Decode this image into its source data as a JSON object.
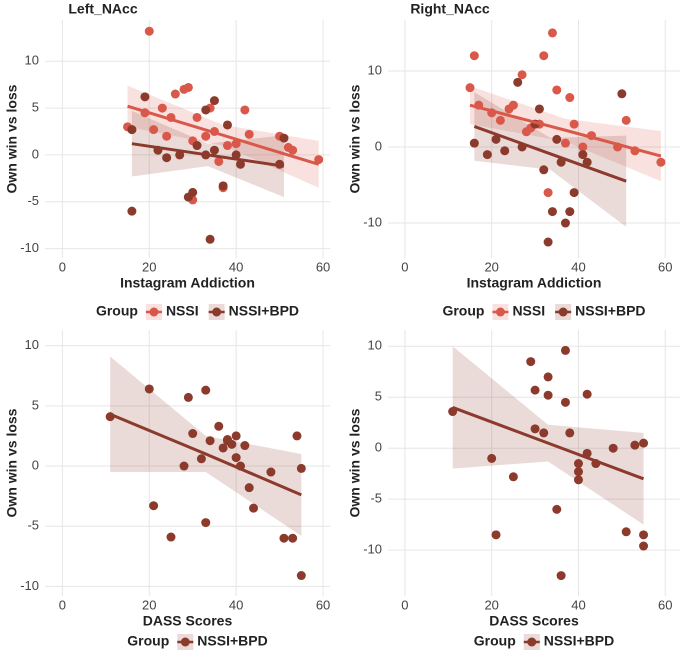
{
  "chart_data": [
    {
      "type": "scatter",
      "title": "Left_NAcc",
      "x_label": "Instagram Addiction",
      "y_label": "Own win vs loss",
      "legend_title": "Group",
      "legend": "bottom",
      "grid": true,
      "xlim": [
        -4,
        61.6
      ],
      "ylim": [
        -11,
        14.4
      ],
      "xticks": [
        0,
        20,
        40,
        60
      ],
      "yticks": [
        -10,
        -5,
        0,
        5,
        10
      ],
      "series": [
        {
          "name": "NSSI",
          "color": "#d9584a",
          "x": [
            15,
            16,
            19,
            20,
            21,
            23,
            24,
            25,
            26,
            28,
            29,
            30,
            31,
            33,
            34,
            35,
            36,
            38,
            40,
            42,
            43,
            50,
            52,
            53,
            59,
            30,
            37
          ],
          "values": [
            3,
            2.7,
            4.5,
            13.2,
            2.7,
            5,
            2,
            4,
            6.5,
            7,
            7.2,
            1.5,
            4,
            2,
            5,
            2.5,
            -0.7,
            1,
            1.2,
            4.8,
            2.2,
            2,
            0.8,
            0.5,
            -0.5,
            -4.8,
            -3.5
          ],
          "fit_x": [
            15,
            37,
            59
          ],
          "fit": [
            5.2,
            2.1,
            -1.0
          ],
          "fit_lower": [
            3.0,
            1.0,
            -3.5
          ],
          "fit_upper": [
            7.4,
            3.2,
            1.5
          ]
        },
        {
          "name": "NSSI+BPD",
          "color": "#8b3a2c",
          "x": [
            16,
            16,
            19,
            22,
            24,
            27,
            29,
            30,
            31,
            33,
            34,
            35,
            37,
            38,
            40,
            41,
            50,
            51,
            33,
            35
          ],
          "values": [
            -6,
            2.7,
            6.2,
            0.5,
            -0.3,
            0,
            -4.5,
            -4,
            1,
            0,
            -9,
            5.8,
            -3.3,
            3.2,
            0,
            -1,
            -1,
            1.8,
            4.8,
            0.5
          ],
          "fit_x": [
            16,
            33.5,
            51
          ],
          "fit": [
            1.2,
            0,
            -1.2
          ],
          "fit_lower": [
            -2.3,
            -1.2,
            -4.5
          ],
          "fit_upper": [
            4.7,
            1.2,
            2.1
          ]
        }
      ]
    },
    {
      "type": "scatter",
      "title": "Right_NAcc",
      "x_label": "Instagram Addiction",
      "y_label": "Own win vs loss",
      "legend_title": "Group",
      "legend": "bottom",
      "grid": true,
      "xlim": [
        -3.9,
        63.4
      ],
      "ylim": [
        -14.6,
        16.7
      ],
      "xticks": [
        0,
        20,
        40,
        60
      ],
      "yticks": [
        -10,
        0,
        10
      ],
      "series": [
        {
          "name": "NSSI",
          "color": "#d9584a",
          "x": [
            15,
            16,
            17,
            20,
            22,
            24,
            25,
            27,
            28,
            29,
            31,
            32,
            33,
            34,
            35,
            37,
            38,
            39,
            41,
            43,
            49,
            51,
            53,
            59
          ],
          "values": [
            7.8,
            12,
            5.5,
            4.5,
            3.5,
            5,
            5.5,
            9.5,
            2,
            2.5,
            3,
            12,
            -6,
            15,
            7.5,
            0.5,
            6.5,
            3,
            0,
            1.5,
            0,
            3.5,
            -0.5,
            -2
          ],
          "fit_x": [
            15,
            37,
            59
          ],
          "fit": [
            5.5,
            2.2,
            -1.2
          ],
          "fit_lower": [
            3.0,
            0.7,
            -4.5
          ],
          "fit_upper": [
            8.0,
            3.7,
            2.1
          ]
        },
        {
          "name": "NSSI+BPD",
          "color": "#8b3a2c",
          "x": [
            16,
            19,
            21,
            23,
            26,
            27,
            30,
            31,
            32,
            33,
            34,
            36,
            37,
            38,
            39,
            41,
            42,
            50,
            35
          ],
          "values": [
            0.5,
            -1,
            1,
            -0.5,
            8.5,
            0,
            3,
            5,
            -3,
            -12.5,
            -8.5,
            -2,
            -10,
            -8.5,
            -6,
            -1,
            -2,
            7,
            1
          ],
          "fit_x": [
            16,
            33.5,
            51
          ],
          "fit": [
            2.7,
            -0.9,
            -4.5
          ],
          "fit_lower": [
            -1.8,
            -3.0,
            -10.5
          ],
          "fit_upper": [
            7.2,
            1.2,
            1.5
          ]
        }
      ]
    },
    {
      "type": "scatter",
      "x_label": "DASS Scores",
      "y_label": "Own win vs loss",
      "legend_title": "Group",
      "legend": "bottom",
      "grid": true,
      "xlim": [
        -4,
        61.6
      ],
      "ylim": [
        -10.8,
        11.3
      ],
      "xticks": [
        0,
        20,
        40,
        60
      ],
      "yticks": [
        -10,
        -5,
        0,
        5,
        10
      ],
      "series": [
        {
          "name": "NSSI+BPD",
          "color": "#8b3a2c",
          "x": [
            11,
            20,
            21,
            25,
            28,
            29,
            30,
            32,
            33,
            33,
            34,
            36,
            37,
            38,
            39,
            40,
            40,
            41,
            42,
            43,
            44,
            48,
            51,
            53,
            54,
            55,
            55,
            38
          ],
          "values": [
            4.1,
            6.4,
            -3.3,
            -5.9,
            0,
            5.7,
            2.7,
            0.6,
            6.3,
            -4.7,
            2.1,
            3.3,
            1.5,
            2.1,
            1.8,
            0.7,
            2.5,
            0,
            1.7,
            -1.8,
            -3.5,
            -0.5,
            -6,
            -6,
            2.5,
            -0.2,
            -9.1,
            2.2
          ],
          "fit_x": [
            11,
            33,
            55
          ],
          "fit": [
            4.3,
            1.0,
            -2.4
          ],
          "fit_lower": [
            -0.5,
            -0.5,
            -5.8
          ],
          "fit_upper": [
            9.1,
            2.5,
            1.0
          ]
        }
      ]
    },
    {
      "type": "scatter",
      "x_label": "DASS Scores",
      "y_label": "Own win vs loss",
      "legend_title": "Group",
      "legend": "bottom",
      "grid": true,
      "xlim": [
        -3.9,
        63.4
      ],
      "ylim": [
        -14.5,
        11.6
      ],
      "xticks": [
        0,
        20,
        40,
        60
      ],
      "yticks": [
        -10,
        -5,
        0,
        5,
        10
      ],
      "series": [
        {
          "name": "NSSI+BPD",
          "color": "#8b3a2c",
          "x": [
            11,
            20,
            21,
            25,
            29,
            30,
            30,
            32,
            33,
            33,
            35,
            36,
            37,
            37,
            38,
            40,
            40,
            40,
            42,
            42,
            44,
            48,
            51,
            53,
            55,
            55,
            55
          ],
          "values": [
            3.6,
            -1,
            -8.5,
            -2.8,
            8.5,
            5.7,
            1.9,
            1.5,
            7,
            5.2,
            -6,
            -12.5,
            9.6,
            4.5,
            1.5,
            -1.5,
            -2.3,
            -3.1,
            5.3,
            -0.5,
            -1.5,
            0,
            -8.2,
            0.3,
            0.5,
            -8.5,
            -9.6
          ],
          "fit_x": [
            11,
            33,
            55
          ],
          "fit": [
            4.0,
            0.5,
            -3.0
          ],
          "fit_lower": [
            -2.0,
            -1.3,
            -7.5
          ],
          "fit_upper": [
            10.0,
            2.3,
            1.5
          ]
        }
      ]
    }
  ]
}
